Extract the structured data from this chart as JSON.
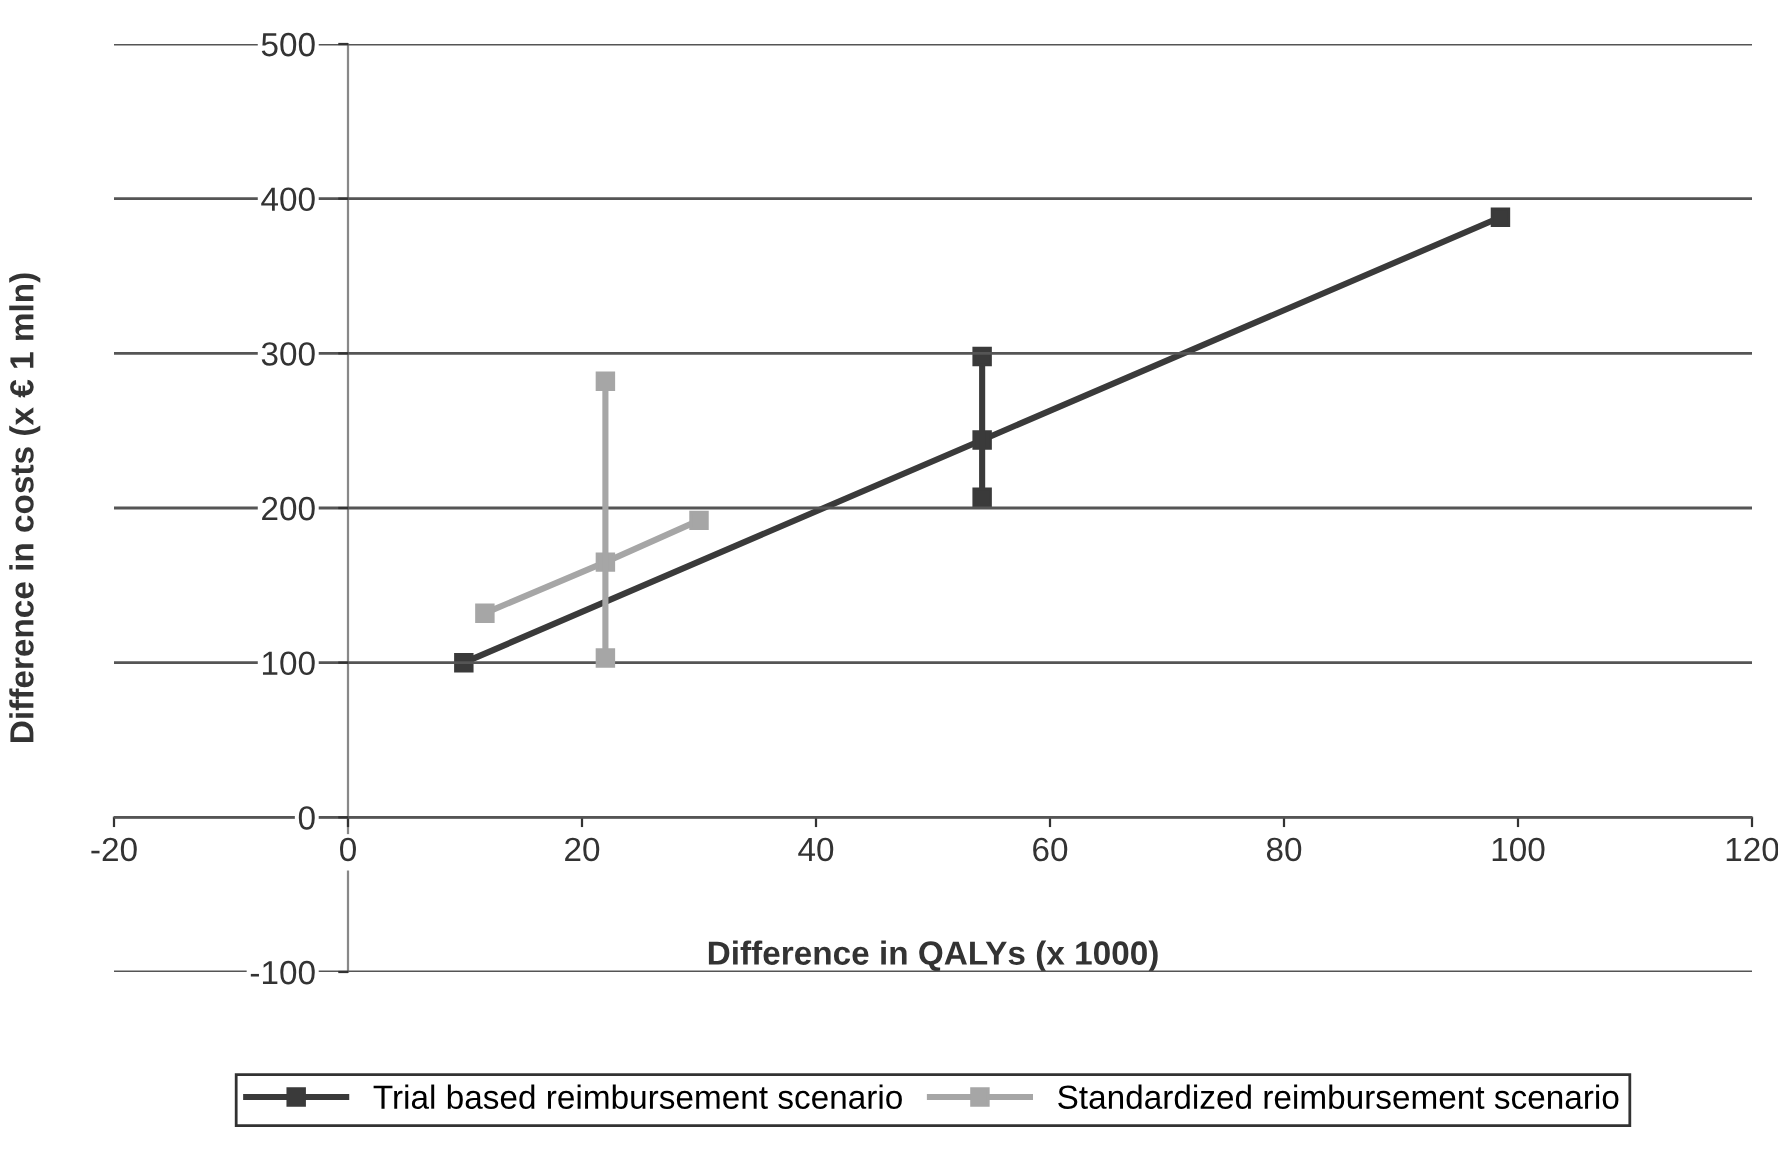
{
  "chart_data": {
    "type": "line",
    "xlabel": "Difference in QALYs (x 1000)",
    "ylabel": "Difference in costs (x € 1 mln)",
    "series": [
      {
        "name": "Trial based reimbursement scenario",
        "color": "#3a3a3a",
        "x": [
          9.9,
          54.2,
          98.5
        ],
        "values": [
          100,
          244,
          388
        ]
      },
      {
        "color": "#3a3a3a",
        "x": [
          54.2,
          54.2
        ],
        "values": [
          207,
          298
        ]
      },
      {
        "name": "Standardized reimbursement scenario",
        "color": "#a6a6a6",
        "x": [
          11.7,
          22,
          30
        ],
        "values": [
          132,
          165,
          192
        ]
      },
      {
        "color": "#a6a6a6",
        "x": [
          22,
          22
        ],
        "values": [
          103,
          282
        ]
      }
    ],
    "xlim": [
      -20,
      120
    ],
    "xticks": [
      -20,
      0,
      20,
      40,
      60,
      80,
      100,
      120
    ],
    "ylim": [
      -100,
      500
    ],
    "yticks": [
      -100,
      0,
      100,
      200,
      300,
      400,
      500
    ],
    "grid": "y",
    "legend": "bottom",
    "marker": "square",
    "line_style": "solid"
  }
}
